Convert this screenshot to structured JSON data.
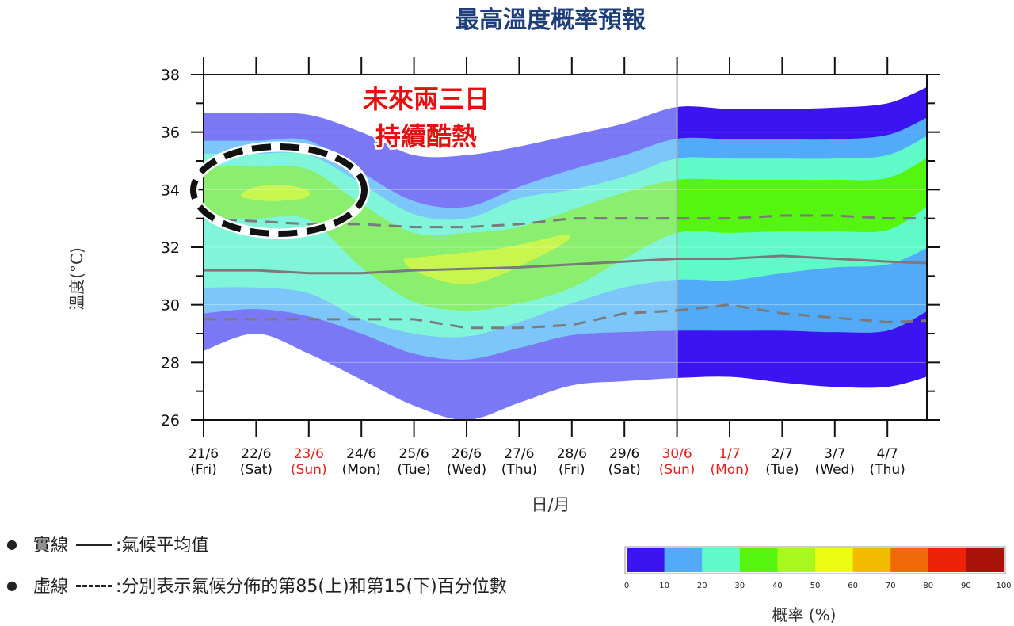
{
  "title": "最高溫度概率預報",
  "annotation": {
    "line1": "未來兩三日",
    "line2": "持續酷熱"
  },
  "legend": {
    "solid_name": "實線",
    "solid_desc": ":氣候平均值",
    "dashed_name": "虛線",
    "dashed_desc": ":分別表示氣候分佈的第85(上)和第15(下)百分位數"
  },
  "colorbar": {
    "label": "概率 (%)",
    "ticks": [
      "0",
      "10",
      "20",
      "30",
      "40",
      "50",
      "60",
      "70",
      "80",
      "90",
      "100"
    ],
    "colors": [
      "#3c14f2",
      "#52aaf8",
      "#5ffac8",
      "#55f510",
      "#a8f820",
      "#ecfc10",
      "#f4bc00",
      "#f06a08",
      "#ee2208",
      "#a81208"
    ]
  },
  "chart_data": {
    "type": "area",
    "title": "最高溫度概率預報",
    "xlabel": "日/月",
    "ylabel": "溫度(°C)",
    "ylim": [
      26,
      38
    ],
    "yticks": [
      "26",
      "28",
      "30",
      "32",
      "34",
      "36",
      "38"
    ],
    "x_end": 13.75,
    "forecast_start_index": 9,
    "categories": [
      {
        "date": "21/6",
        "dow": "(Fri)",
        "holiday": false
      },
      {
        "date": "22/6",
        "dow": "(Sat)",
        "holiday": false
      },
      {
        "date": "23/6",
        "dow": "(Sun)",
        "holiday": true
      },
      {
        "date": "24/6",
        "dow": "(Mon)",
        "holiday": false
      },
      {
        "date": "25/6",
        "dow": "(Tue)",
        "holiday": false
      },
      {
        "date": "26/6",
        "dow": "(Wed)",
        "holiday": false
      },
      {
        "date": "27/6",
        "dow": "(Thu)",
        "holiday": false
      },
      {
        "date": "28/6",
        "dow": "(Fri)",
        "holiday": false
      },
      {
        "date": "29/6",
        "dow": "(Sat)",
        "holiday": false
      },
      {
        "date": "30/6",
        "dow": "(Sun)",
        "holiday": true
      },
      {
        "date": "1/7",
        "dow": "(Mon)",
        "holiday": true
      },
      {
        "date": "2/7",
        "dow": "(Tue)",
        "holiday": false
      },
      {
        "date": "3/7",
        "dow": "(Wed)",
        "holiday": false
      },
      {
        "date": "4/7",
        "dow": "(Thu)",
        "holiday": false
      }
    ],
    "band_x": [
      0,
      1,
      2,
      3,
      4,
      5,
      6,
      7,
      8,
      9,
      10,
      11,
      12,
      13,
      13.75
    ],
    "bands": [
      {
        "level": "0-10%",
        "lower": [
          28.4,
          29.0,
          28.3,
          27.4,
          26.5,
          26.0,
          26.6,
          27.2,
          27.35,
          27.46,
          27.5,
          27.3,
          27.15,
          27.15,
          27.5
        ],
        "upper": [
          36.65,
          36.65,
          36.6,
          36.0,
          35.2,
          35.2,
          35.5,
          35.9,
          36.3,
          36.87,
          36.8,
          36.8,
          36.85,
          37.0,
          37.56
        ]
      },
      {
        "level": "10-20%",
        "lower": [
          29.7,
          29.85,
          29.6,
          29.0,
          28.3,
          28.1,
          28.5,
          28.95,
          29.05,
          29.1,
          29.1,
          29.1,
          29.05,
          29.1,
          29.77
        ],
        "upper": [
          35.7,
          35.7,
          35.7,
          34.6,
          33.6,
          33.4,
          34.1,
          34.7,
          35.2,
          35.77,
          35.75,
          35.75,
          35.75,
          35.9,
          36.5
        ]
      },
      {
        "level": "20-30%",
        "lower": [
          30.6,
          30.6,
          30.4,
          29.5,
          29.0,
          28.9,
          29.4,
          30.05,
          30.6,
          30.87,
          30.85,
          31.1,
          31.3,
          31.4,
          31.97
        ],
        "upper": [
          35.25,
          35.25,
          35.2,
          34.2,
          33.15,
          33.0,
          33.7,
          34.0,
          34.45,
          35.08,
          35.08,
          35.08,
          35.08,
          35.2,
          35.86
        ]
      },
      {
        "level": "30-40%",
        "lower": [
          33.0,
          33.0,
          32.95,
          31.3,
          30.1,
          29.8,
          30.05,
          30.6,
          31.6,
          32.5,
          32.5,
          32.55,
          32.55,
          32.6,
          33.4
        ],
        "upper": [
          34.8,
          34.8,
          34.7,
          33.5,
          32.5,
          32.5,
          32.7,
          33.3,
          33.9,
          34.34,
          34.34,
          34.34,
          34.34,
          34.4,
          35.1
        ]
      }
    ],
    "high_prob_regions": [
      {
        "level": "40-50%",
        "points": [
          [
            0.7,
            33.85
          ],
          [
            1.0,
            34.1
          ],
          [
            1.6,
            34.15
          ],
          [
            2.0,
            33.95
          ],
          [
            1.9,
            33.7
          ],
          [
            1.3,
            33.6
          ],
          [
            0.8,
            33.7
          ]
        ]
      },
      {
        "level": "40-50%",
        "points": [
          [
            3.8,
            31.6
          ],
          [
            4.6,
            31.75
          ],
          [
            5.6,
            31.95
          ],
          [
            6.4,
            32.25
          ],
          [
            6.9,
            32.45
          ],
          [
            6.9,
            32.2
          ],
          [
            6.3,
            31.6
          ],
          [
            5.6,
            31.0
          ],
          [
            5.0,
            30.7
          ],
          [
            4.4,
            30.9
          ],
          [
            3.9,
            31.3
          ]
        ]
      }
    ],
    "series": [
      {
        "name": "氣候平均值",
        "style": "solid",
        "x": [
          0,
          1,
          2,
          3,
          4,
          5,
          6,
          7,
          8,
          9,
          10,
          11,
          12,
          13,
          13.75
        ],
        "values": [
          31.2,
          31.2,
          31.1,
          31.1,
          31.2,
          31.25,
          31.3,
          31.4,
          31.5,
          31.6,
          31.6,
          31.7,
          31.6,
          31.5,
          31.45
        ]
      },
      {
        "name": "第85百分位數",
        "style": "dashed",
        "x": [
          0,
          1,
          2,
          3,
          4,
          5,
          6,
          7,
          8,
          9,
          10,
          11,
          12,
          13,
          13.75
        ],
        "values": [
          33.0,
          32.9,
          32.8,
          32.8,
          32.7,
          32.7,
          32.8,
          33.0,
          33.0,
          33.0,
          33.0,
          33.1,
          33.1,
          33.0,
          33.0
        ]
      },
      {
        "name": "第15百分位數",
        "style": "dashed",
        "x": [
          0,
          1,
          2,
          3,
          4,
          5,
          6,
          7,
          8,
          9,
          10,
          11,
          12,
          13,
          13.75
        ],
        "values": [
          29.5,
          29.5,
          29.5,
          29.5,
          29.5,
          29.2,
          29.2,
          29.3,
          29.7,
          29.8,
          30.0,
          29.7,
          29.55,
          29.4,
          29.45
        ]
      }
    ],
    "colors_past": [
      "#7b78f6",
      "#7cc6fa",
      "#80f5da",
      "#8aee6e",
      "#c8f64e"
    ],
    "colors_forecast": [
      "#3c14f2",
      "#52aaf8",
      "#5ffac8",
      "#55f510",
      "#a8f820"
    ]
  }
}
